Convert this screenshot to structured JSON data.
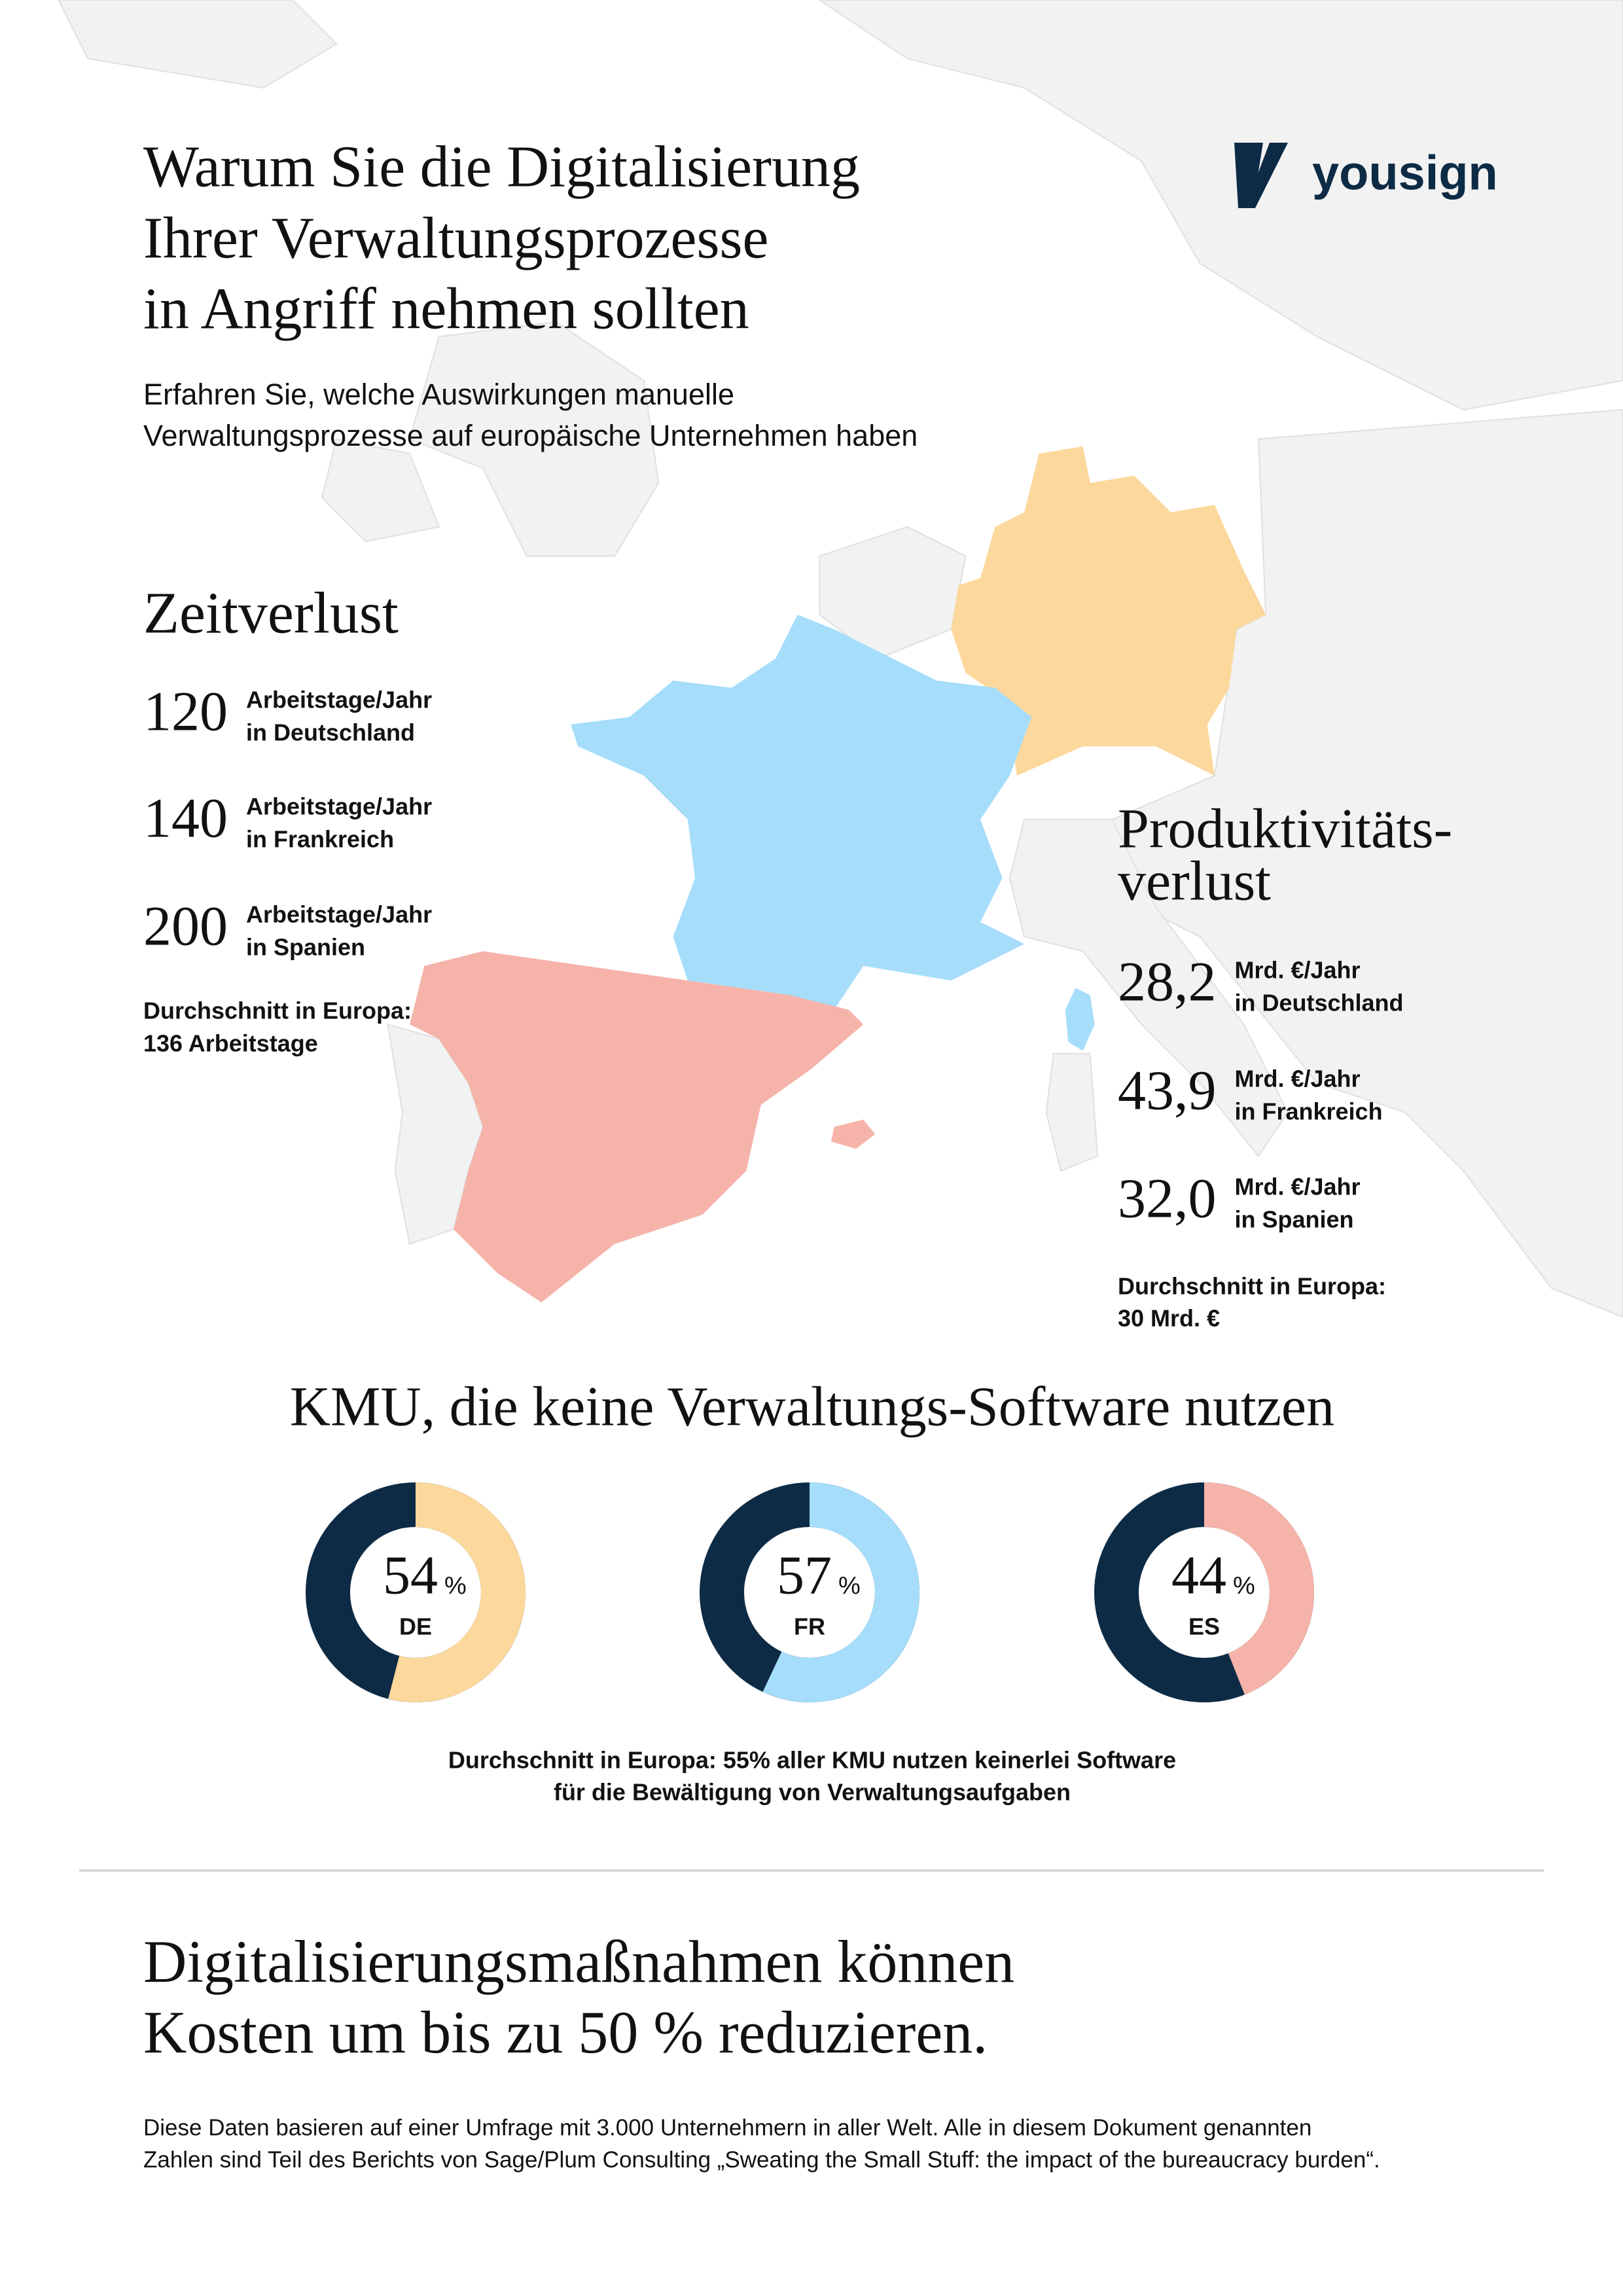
{
  "header": {
    "title": [
      "Warum Sie die Digitalisierung",
      "Ihrer Verwaltungsprozesse",
      "in Angriff nehmen sollten"
    ],
    "subtitle": [
      "Erfahren Sie, welche Auswirkungen manuelle",
      "Verwaltungsprozesse auf europäische Unternehmen haben"
    ],
    "logo": "yousign"
  },
  "time_loss": {
    "title": "Zeitverlust",
    "items": [
      {
        "value": "120",
        "unit": "Arbeitstage/Jahr",
        "country": "in Deutschland"
      },
      {
        "value": "140",
        "unit": "Arbeitstage/Jahr",
        "country": "in Frankreich"
      },
      {
        "value": "200",
        "unit": "Arbeitstage/Jahr",
        "country": "in Spanien"
      }
    ],
    "average": [
      "Durchschnitt in Europa:",
      "136 Arbeitstage"
    ]
  },
  "productivity_loss": {
    "title": [
      "Produktivitäts-",
      "verlust"
    ],
    "items": [
      {
        "value": "28,2",
        "unit": "Mrd. €/Jahr",
        "country": "in Deutschland"
      },
      {
        "value": "43,9",
        "unit": "Mrd. €/Jahr",
        "country": "in Frankreich"
      },
      {
        "value": "32,0",
        "unit": "Mrd. €/Jahr",
        "country": "in Spanien"
      }
    ],
    "average": [
      "Durchschnitt in Europa:",
      "30 Mrd. €"
    ]
  },
  "sme": {
    "title": "KMU, die keine Verwaltungs-Software nutzen",
    "ring_color": "#0d2b45",
    "donuts": [
      {
        "value": 54,
        "unit": "%",
        "label": "DE",
        "color": "#fcd89c"
      },
      {
        "value": 57,
        "unit": "%",
        "label": "FR",
        "color": "#a6ddfb"
      },
      {
        "value": 44,
        "unit": "%",
        "label": "ES",
        "color": "#f5b3a9"
      }
    ],
    "note": [
      "Durchschnitt in Europa: 55% aller KMU nutzen keinerlei Software",
      "für die Bewältigung von Verwaltungsaufgaben"
    ]
  },
  "conclusion": {
    "title": [
      "Digitalisierungsmaßnahmen können",
      "Kosten um bis zu 50 % reduzieren."
    ],
    "footnote": [
      "Diese Daten basieren auf einer Umfrage mit 3.000 Unternehmern in aller Welt. Alle in diesem Dokument genannten",
      "Zahlen sind Teil des Berichts von Sage/Plum Consulting „Sweating the Small Stuff: the impact of the bureaucracy burden“."
    ]
  }
}
